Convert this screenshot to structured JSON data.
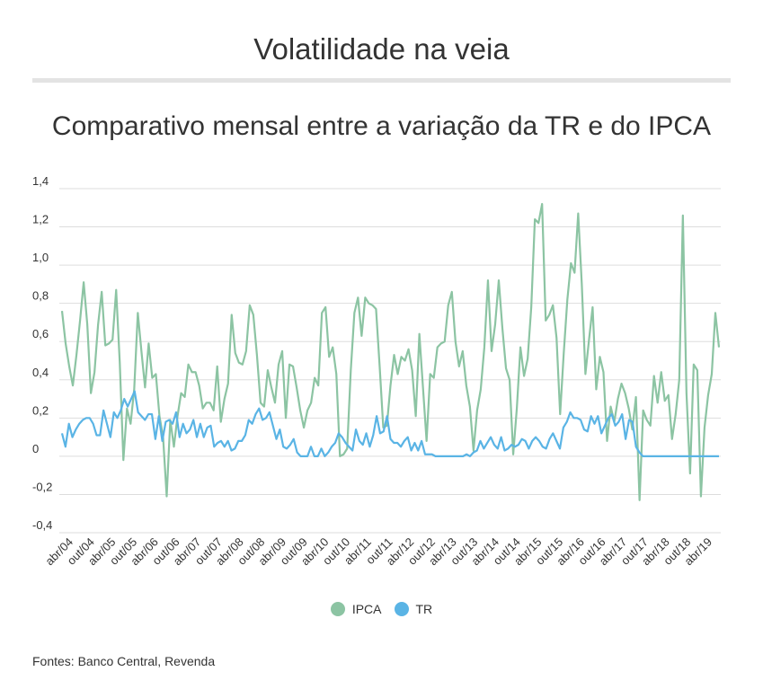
{
  "header": {
    "title": "Volatilidade na veia"
  },
  "chart_data": {
    "type": "line",
    "title": "Comparativo mensal entre a variação da TR e do IPCA",
    "ylim": [
      -0.4,
      1.4
    ],
    "yticks": [
      -0.4,
      -0.2,
      0,
      0.2,
      0.4,
      0.6,
      0.8,
      1.0,
      1.2,
      1.4
    ],
    "ytick_labels": [
      "-0,4",
      "-0,2",
      "0",
      "0,2",
      "0,4",
      "0,6",
      "0,8",
      "1,0",
      "1,2",
      "1,4"
    ],
    "grid": true,
    "legend_position": "bottom-center",
    "x_labels": [
      "abr/04",
      "out/04",
      "abr/05",
      "out/05",
      "abr/06",
      "out/06",
      "abr/07",
      "out/07",
      "abr/08",
      "out/08",
      "abr/09",
      "out/09",
      "abr/10",
      "out/10",
      "abr/11",
      "out/11",
      "abr/12",
      "out/12",
      "abr/13",
      "out/13",
      "abr/14",
      "out/14",
      "abr/15",
      "out/15",
      "abr/16",
      "out/16",
      "abr/17",
      "out/17",
      "abr/18",
      "out/18",
      "abr/19"
    ],
    "series": [
      {
        "name": "IPCA",
        "color": "#8cc4a3",
        "values": [
          0.76,
          0.59,
          0.47,
          0.37,
          0.53,
          0.71,
          0.91,
          0.69,
          0.33,
          0.44,
          0.69,
          0.86,
          0.58,
          0.59,
          0.61,
          0.87,
          0.49,
          -0.02,
          0.25,
          0.17,
          0.35,
          0.75,
          0.55,
          0.36,
          0.59,
          0.41,
          0.43,
          0.21,
          0.1,
          -0.21,
          0.19,
          0.05,
          0.21,
          0.33,
          0.31,
          0.48,
          0.44,
          0.44,
          0.37,
          0.25,
          0.28,
          0.28,
          0.24,
          0.47,
          0.18,
          0.3,
          0.38,
          0.74,
          0.54,
          0.49,
          0.48,
          0.55,
          0.79,
          0.74,
          0.53,
          0.28,
          0.26,
          0.45,
          0.36,
          0.28,
          0.48,
          0.55,
          0.2,
          0.48,
          0.47,
          0.36,
          0.24,
          0.15,
          0.24,
          0.28,
          0.41,
          0.37,
          0.75,
          0.78,
          0.52,
          0.57,
          0.43,
          0.0,
          0.01,
          0.04,
          0.45,
          0.75,
          0.83,
          0.63,
          0.83,
          0.8,
          0.79,
          0.77,
          0.47,
          0.15,
          0.16,
          0.37,
          0.53,
          0.43,
          0.52,
          0.5,
          0.56,
          0.45,
          0.21,
          0.64,
          0.36,
          0.08,
          0.43,
          0.41,
          0.57,
          0.59,
          0.6,
          0.79,
          0.86,
          0.6,
          0.47,
          0.55,
          0.37,
          0.26,
          0.03,
          0.24,
          0.35,
          0.57,
          0.92,
          0.55,
          0.69,
          0.92,
          0.67,
          0.46,
          0.4,
          0.01,
          0.25,
          0.57,
          0.42,
          0.51,
          0.78,
          1.24,
          1.22,
          1.32,
          0.71,
          0.74,
          0.79,
          0.62,
          0.22,
          0.54,
          0.82,
          1.01,
          0.96,
          1.27,
          0.9,
          0.43,
          0.61,
          0.78,
          0.35,
          0.52,
          0.44,
          0.08,
          0.26,
          0.18,
          0.3,
          0.38,
          0.33,
          0.25,
          0.14,
          0.31,
          -0.23,
          0.24,
          0.19,
          0.16,
          0.42,
          0.28,
          0.44,
          0.29,
          0.32,
          0.09,
          0.22,
          0.4,
          1.26,
          0.33,
          -0.09,
          0.48,
          0.45,
          -0.21,
          0.15,
          0.32,
          0.43,
          0.75,
          0.57
        ]
      },
      {
        "name": "TR",
        "color": "#5ab4e5",
        "values": [
          0.12,
          0.05,
          0.17,
          0.1,
          0.14,
          0.17,
          0.19,
          0.2,
          0.2,
          0.17,
          0.11,
          0.11,
          0.24,
          0.17,
          0.1,
          0.23,
          0.2,
          0.24,
          0.3,
          0.26,
          0.3,
          0.34,
          0.23,
          0.21,
          0.19,
          0.22,
          0.22,
          0.09,
          0.21,
          0.08,
          0.18,
          0.19,
          0.17,
          0.23,
          0.1,
          0.17,
          0.12,
          0.14,
          0.19,
          0.1,
          0.17,
          0.1,
          0.15,
          0.16,
          0.05,
          0.07,
          0.08,
          0.05,
          0.08,
          0.03,
          0.04,
          0.08,
          0.08,
          0.11,
          0.19,
          0.17,
          0.22,
          0.25,
          0.19,
          0.2,
          0.23,
          0.16,
          0.09,
          0.14,
          0.05,
          0.04,
          0.06,
          0.09,
          0.02,
          0.0,
          0.0,
          0.0,
          0.05,
          0.0,
          0.0,
          0.04,
          0.0,
          0.02,
          0.05,
          0.07,
          0.12,
          0.1,
          0.07,
          0.05,
          0.03,
          0.14,
          0.08,
          0.06,
          0.12,
          0.05,
          0.11,
          0.21,
          0.12,
          0.13,
          0.21,
          0.09,
          0.07,
          0.07,
          0.05,
          0.08,
          0.1,
          0.03,
          0.07,
          0.03,
          0.08,
          0.01,
          0.01,
          0.01,
          0.0,
          0.0,
          0.0,
          0.0,
          0.0,
          0.0,
          0.0,
          0.0,
          0.0,
          0.01,
          0.0,
          0.02,
          0.03,
          0.08,
          0.04,
          0.07,
          0.1,
          0.06,
          0.04,
          0.1,
          0.03,
          0.04,
          0.06,
          0.05,
          0.06,
          0.09,
          0.08,
          0.04,
          0.08,
          0.1,
          0.08,
          0.05,
          0.04,
          0.09,
          0.12,
          0.08,
          0.04,
          0.15,
          0.18,
          0.23,
          0.2,
          0.2,
          0.19,
          0.14,
          0.13,
          0.21,
          0.17,
          0.21,
          0.12,
          0.16,
          0.2,
          0.22,
          0.16,
          0.18,
          0.22,
          0.09,
          0.19,
          0.18,
          0.05,
          0.02,
          0.0,
          0.0,
          0.0,
          0.0,
          0.0,
          0.0,
          0.0,
          0.0,
          0.0,
          0.0,
          0.0,
          0.0,
          0.0,
          0.0,
          0.0,
          0.0,
          0.0,
          0.0,
          0.0,
          0.0,
          0.0,
          0.0,
          0.0
        ]
      }
    ]
  },
  "source": "Fontes: Banco Central, Revenda"
}
